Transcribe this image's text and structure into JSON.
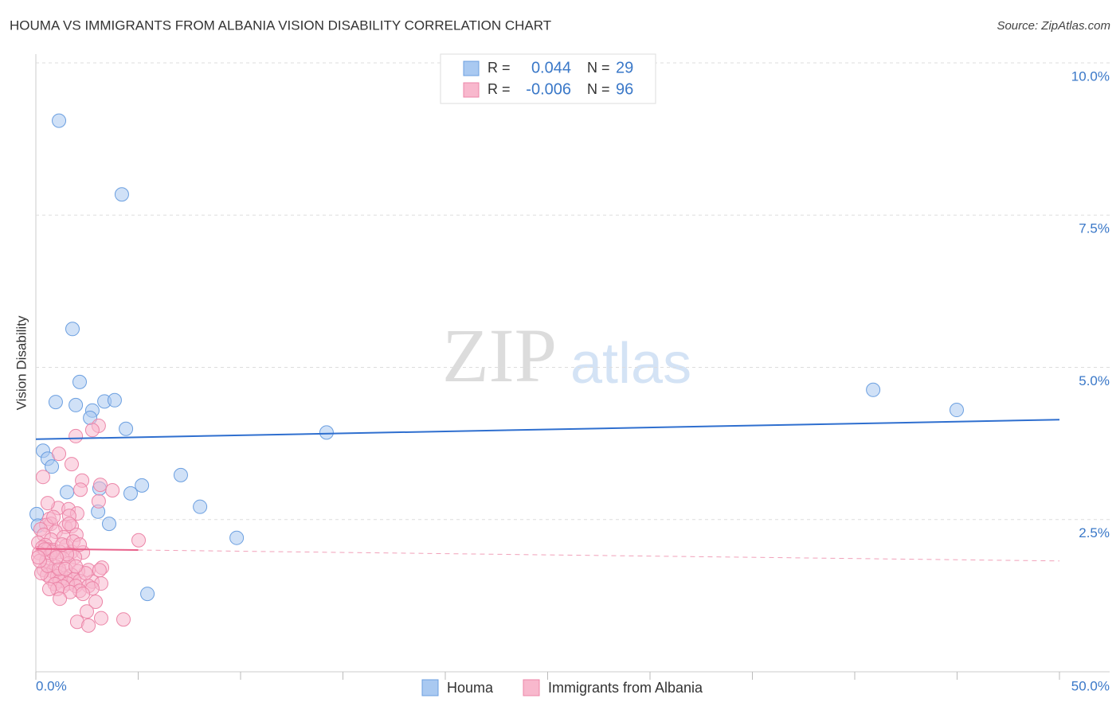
{
  "chart_data": {
    "type": "scatter",
    "title": "HOUMA VS IMMIGRANTS FROM ALBANIA VISION DISABILITY CORRELATION CHART",
    "source": "Source: ZipAtlas.com",
    "ylabel": "Vision Disability",
    "watermark": {
      "bold": "ZIP",
      "light": "atlas"
    },
    "xlim": [
      0,
      50
    ],
    "ylim": [
      0,
      10.15
    ],
    "xticks": [
      {
        "value": 0,
        "label": "0.0%"
      },
      {
        "value": 50,
        "label": "50.0%"
      }
    ],
    "xminorticks": [
      5,
      10,
      15,
      20,
      25,
      30,
      35,
      40,
      45
    ],
    "yticks": [
      {
        "value": 2.5,
        "label": "2.5%"
      },
      {
        "value": 5,
        "label": "5.0%"
      },
      {
        "value": 7.5,
        "label": "7.5%"
      },
      {
        "value": 10,
        "label": "10.0%"
      }
    ],
    "grid": true,
    "legend_labels": {
      "r": "R =",
      "n": "N ="
    },
    "series": [
      {
        "name": "Houma",
        "color": "#a9c9f1",
        "edge": "#6b9fe0",
        "line_color": "#2f6fcf",
        "r": 0.044,
        "n": 29,
        "x": [
          1.13,
          4.2,
          1.79,
          2.14,
          0.97,
          1.95,
          3.35,
          3.85,
          2.76,
          2.65,
          4.4,
          14.2,
          0.35,
          0.58,
          0.78,
          7.08,
          5.18,
          3.11,
          1.52,
          4.63,
          8.02,
          3.04,
          0.04,
          3.58,
          9.81,
          5.45,
          40.9,
          44.98,
          0.1
        ],
        "y": [
          9.05,
          7.84,
          5.63,
          4.76,
          4.43,
          4.38,
          4.44,
          4.46,
          4.29,
          4.17,
          3.99,
          3.93,
          3.63,
          3.5,
          3.37,
          3.23,
          3.06,
          3.01,
          2.95,
          2.93,
          2.71,
          2.63,
          2.59,
          2.43,
          2.2,
          1.28,
          4.63,
          4.3,
          2.4
        ],
        "trend": {
          "x": [
            0,
            50
          ],
          "y": [
            3.82,
            4.14
          ],
          "style": [
            "solid"
          ]
        }
      },
      {
        "name": "Immigrants from Albania",
        "color": "#f8b8cd",
        "edge": "#ec86a8",
        "line_color": "#e8608a",
        "r": -0.006,
        "n": 96,
        "x": [
          3.07,
          2.76,
          1.95,
          1.13,
          1.75,
          0.35,
          2.26,
          3.15,
          3.74,
          2.18,
          3.07,
          1.09,
          1.6,
          2.02,
          1.63,
          0.66,
          0.74,
          0.51,
          1.44,
          1.75,
          0.23,
          0.97,
          0.39,
          1.98,
          1.36,
          0.74,
          5.02,
          0.12,
          0.47,
          1.48,
          0.31,
          0.58,
          0.86,
          1.17,
          1.75,
          2.3,
          0.16,
          0.7,
          1.91,
          1.32,
          0.51,
          1.6,
          0.97,
          3.23,
          2.57,
          0.39,
          0.82,
          2.06,
          1.21,
          0.55,
          1.75,
          3.11,
          1.05,
          1.44,
          0.74,
          1.87,
          0.27,
          2.14,
          1.17,
          2.76,
          1.56,
          0.93,
          1.95,
          2.57,
          1.32,
          3.19,
          1.05,
          2.14,
          1.67,
          2.76,
          0.58,
          2.3,
          2.92,
          1.17,
          2.49,
          3.19,
          4.28,
          2.02,
          2.57,
          0.19,
          0.82,
          1.52,
          1.28,
          1.83,
          0.43,
          1.13,
          2.43,
          1.63,
          0.86,
          0.58,
          2.14,
          1.01,
          0.12,
          1.44,
          1.95,
          0.66
        ],
        "y": [
          4.04,
          3.97,
          3.87,
          3.58,
          3.41,
          3.2,
          3.14,
          3.07,
          2.98,
          2.99,
          2.8,
          2.69,
          2.67,
          2.6,
          2.56,
          2.51,
          2.43,
          2.41,
          2.38,
          2.39,
          2.34,
          2.3,
          2.25,
          2.25,
          2.21,
          2.17,
          2.16,
          2.12,
          2.08,
          2.07,
          2.04,
          2.01,
          2.0,
          1.97,
          1.97,
          1.96,
          1.95,
          1.92,
          1.88,
          1.86,
          1.82,
          1.78,
          1.73,
          1.71,
          1.67,
          1.67,
          1.65,
          1.65,
          1.62,
          1.59,
          1.59,
          1.67,
          1.57,
          1.54,
          1.53,
          1.52,
          1.62,
          1.49,
          1.49,
          1.48,
          1.45,
          1.44,
          1.41,
          1.41,
          1.4,
          1.45,
          1.36,
          1.33,
          1.31,
          1.37,
          1.74,
          1.28,
          1.15,
          1.2,
          0.99,
          0.88,
          0.86,
          0.82,
          0.76,
          1.82,
          1.97,
          1.93,
          2.09,
          2.14,
          2.01,
          1.69,
          1.62,
          2.43,
          2.54,
          2.77,
          2.09,
          1.88,
          1.88,
          1.69,
          1.73,
          1.36
        ],
        "trend": {
          "x": [
            0,
            5,
            50
          ],
          "y": [
            2.02,
            2.0,
            1.82
          ],
          "style": [
            "solid",
            "dashed"
          ]
        }
      }
    ]
  }
}
